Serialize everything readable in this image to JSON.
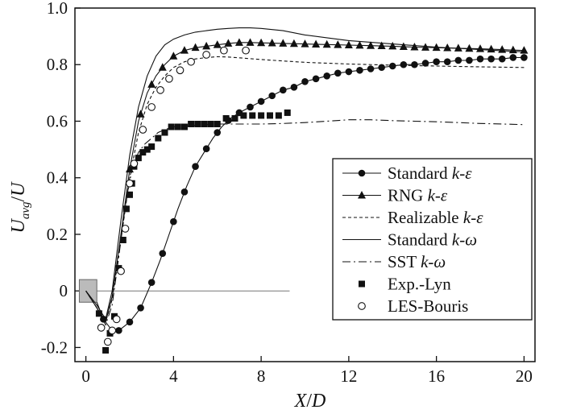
{
  "chart_data": {
    "type": "line",
    "xlabel": "X/D",
    "ylabel": "U_avg/U",
    "xlim": [
      -0.5,
      20.5
    ],
    "ylim": [
      -0.25,
      1.0
    ],
    "xticks": [
      0,
      4,
      8,
      12,
      16,
      20
    ],
    "yticks": [
      -0.2,
      0,
      0.2,
      0.4,
      0.6,
      0.8,
      1.0
    ],
    "ytick_labels": [
      "-0.2",
      "0",
      "0.2",
      "0.4",
      "0.6",
      "0.8",
      "1.0"
    ],
    "grid": false,
    "legend_position": "right",
    "series": [
      {
        "name": "Standard k-ε",
        "line": "solid",
        "marker": "filled-circle",
        "x": [
          0.5,
          0.8,
          1.1,
          1.5,
          2.0,
          2.5,
          3.0,
          3.4,
          3.8,
          4.2,
          4.6,
          5.0,
          5.4,
          5.8,
          6.2,
          6.6,
          7.0,
          7.5,
          8.0,
          8.5,
          9.0,
          9.5,
          10.0,
          10.5,
          11.0,
          11.5,
          12.0,
          12.5,
          13.0,
          13.5,
          14.0,
          14.5,
          15.0,
          15.5,
          16.0,
          16.5,
          17.0,
          17.5,
          18.0,
          18.5,
          19.0,
          19.5,
          20.0
        ],
        "y": [
          -0.04,
          -0.1,
          -0.13,
          -0.14,
          -0.11,
          -0.06,
          0.03,
          0.11,
          0.2,
          0.29,
          0.37,
          0.44,
          0.49,
          0.54,
          0.58,
          0.61,
          0.63,
          0.65,
          0.67,
          0.69,
          0.71,
          0.72,
          0.74,
          0.75,
          0.76,
          0.77,
          0.775,
          0.78,
          0.785,
          0.79,
          0.795,
          0.8,
          0.8,
          0.805,
          0.81,
          0.81,
          0.815,
          0.815,
          0.82,
          0.82,
          0.82,
          0.825,
          0.825
        ],
        "marker_x": [
          0.8,
          1.5,
          2.0,
          2.5,
          3.0,
          3.5,
          4.0,
          4.5,
          5.0,
          5.5,
          6.0,
          6.5,
          7.0,
          7.5,
          8.0,
          8.5,
          9.0,
          9.5,
          10.0,
          10.5,
          11.0,
          11.5,
          12.0,
          12.5,
          13.0,
          13.5,
          14.0,
          14.5,
          15.0,
          15.5,
          16.0,
          16.5,
          17.0,
          17.5,
          18.0,
          18.5,
          19.0,
          19.5,
          20.0
        ]
      },
      {
        "name": "RNG k-ε",
        "line": "solid",
        "marker": "filled-triangle",
        "x": [
          0.0,
          0.5,
          0.9,
          1.2,
          1.6,
          2.0,
          2.4,
          2.8,
          3.2,
          3.6,
          4.0,
          4.5,
          5.0,
          5.5,
          6.0,
          6.5,
          7.0,
          7.5,
          8.0,
          9.0,
          10.0,
          11.0,
          12.0,
          13.0,
          14.0,
          15.0,
          16.0,
          17.0,
          18.0,
          19.0,
          20.0
        ],
        "y": [
          0.0,
          -0.06,
          -0.11,
          -0.02,
          0.2,
          0.43,
          0.6,
          0.7,
          0.76,
          0.8,
          0.83,
          0.85,
          0.86,
          0.865,
          0.87,
          0.875,
          0.878,
          0.878,
          0.877,
          0.875,
          0.873,
          0.871,
          0.869,
          0.867,
          0.865,
          0.862,
          0.86,
          0.858,
          0.856,
          0.853,
          0.85
        ],
        "marker_x": [
          2.0,
          2.5,
          3.0,
          3.5,
          4.0,
          4.5,
          5.0,
          5.5,
          6.0,
          6.5,
          7.0,
          7.5,
          8.0,
          8.5,
          9.0,
          9.5,
          10.0,
          10.5,
          11.0,
          11.5,
          12.0,
          12.5,
          13.0,
          13.5,
          14.0,
          14.5,
          15.0,
          15.5,
          16.0,
          16.5,
          17.0,
          17.5,
          18.0,
          18.5,
          19.0,
          19.5,
          20.0
        ]
      },
      {
        "name": "Realizable k-ε",
        "line": "dashed",
        "x": [
          0.0,
          0.5,
          0.9,
          1.2,
          1.6,
          2.0,
          2.4,
          2.8,
          3.2,
          3.6,
          4.0,
          4.5,
          5.0,
          5.5,
          6.0,
          6.5,
          7.0,
          8.0,
          9.0,
          10.0,
          12.0,
          14.0,
          16.0,
          18.0,
          20.0
        ],
        "y": [
          0.0,
          -0.06,
          -0.11,
          -0.03,
          0.18,
          0.4,
          0.56,
          0.66,
          0.72,
          0.76,
          0.79,
          0.81,
          0.82,
          0.825,
          0.828,
          0.827,
          0.824,
          0.818,
          0.813,
          0.808,
          0.802,
          0.798,
          0.795,
          0.792,
          0.79
        ]
      },
      {
        "name": "Standard k-ω",
        "line": "solid",
        "x": [
          0.0,
          0.5,
          0.9,
          1.2,
          1.6,
          2.0,
          2.4,
          2.8,
          3.2,
          3.6,
          4.0,
          4.5,
          5.0,
          5.5,
          6.0,
          6.5,
          7.0,
          7.5,
          8.0,
          9.0,
          10.0,
          11.0,
          12.0,
          14.0,
          16.0,
          18.0,
          20.0
        ],
        "y": [
          0.0,
          -0.05,
          -0.1,
          0.0,
          0.25,
          0.48,
          0.65,
          0.76,
          0.83,
          0.87,
          0.89,
          0.905,
          0.915,
          0.92,
          0.925,
          0.928,
          0.93,
          0.93,
          0.928,
          0.92,
          0.905,
          0.895,
          0.885,
          0.873,
          0.862,
          0.853,
          0.845
        ]
      },
      {
        "name": "SST k-ω",
        "line": "dashdot",
        "x": [
          0.0,
          0.5,
          0.9,
          1.2,
          1.5,
          1.8,
          2.1,
          2.4,
          2.7,
          3.0,
          3.3,
          3.6,
          4.0,
          5.0,
          6.0,
          7.0,
          8.0,
          9.0,
          10.0,
          11.0,
          12.0,
          13.0,
          14.0,
          15.0,
          16.0,
          17.0,
          18.0,
          19.0,
          20.0
        ],
        "y": [
          0.0,
          -0.06,
          -0.12,
          -0.05,
          0.12,
          0.3,
          0.43,
          0.49,
          0.52,
          0.54,
          0.56,
          0.57,
          0.58,
          0.585,
          0.59,
          0.59,
          0.59,
          0.592,
          0.595,
          0.6,
          0.605,
          0.605,
          0.602,
          0.6,
          0.598,
          0.595,
          0.592,
          0.59,
          0.588
        ]
      },
      {
        "name": "Exp.-Lyn",
        "line": "none",
        "marker": "filled-square",
        "x": [
          0.6,
          0.9,
          1.1,
          1.3,
          1.5,
          1.7,
          1.85,
          2.0,
          2.1,
          2.2,
          2.4,
          2.6,
          2.8,
          3.0,
          3.3,
          3.6,
          3.9,
          4.2,
          4.5,
          4.8,
          5.1,
          5.4,
          5.7,
          6.0,
          6.4,
          6.8,
          7.2,
          7.6,
          8.0,
          8.4,
          8.8,
          9.2
        ],
        "y": [
          -0.08,
          -0.21,
          -0.15,
          -0.09,
          0.08,
          0.18,
          0.29,
          0.34,
          0.38,
          0.44,
          0.47,
          0.49,
          0.5,
          0.51,
          0.54,
          0.56,
          0.58,
          0.58,
          0.58,
          0.59,
          0.59,
          0.59,
          0.59,
          0.59,
          0.61,
          0.61,
          0.62,
          0.62,
          0.62,
          0.62,
          0.62,
          0.63
        ]
      },
      {
        "name": "LES-Bouris",
        "line": "none",
        "marker": "open-circle",
        "x": [
          0.7,
          1.0,
          1.2,
          1.4,
          1.6,
          1.8,
          2.0,
          2.2,
          2.6,
          3.0,
          3.4,
          3.8,
          4.3,
          4.8,
          5.5,
          6.3,
          7.3
        ],
        "y": [
          -0.13,
          -0.18,
          -0.14,
          -0.1,
          0.07,
          0.22,
          0.38,
          0.45,
          0.57,
          0.65,
          0.71,
          0.75,
          0.78,
          0.81,
          0.835,
          0.85,
          0.85
        ]
      }
    ]
  },
  "axes": {
    "x_label_main": "X",
    "x_label_sep": "/",
    "x_label_den": "D",
    "y_label_main": "U",
    "y_label_sub": "avg",
    "y_label_sep": "/",
    "y_label_den": "U"
  },
  "reference": {
    "zero_line_x": [
      -0.2,
      9.3
    ],
    "body_x": [
      -0.3,
      0.5
    ],
    "body_y": [
      -0.04,
      0.04
    ],
    "body_color": "#bbbbbb"
  },
  "legend": [
    {
      "prefix": "Standard ",
      "italic": "k-ε"
    },
    {
      "prefix": "RNG ",
      "italic": "k-ε"
    },
    {
      "prefix": "Realizable ",
      "italic": "k-ε"
    },
    {
      "prefix": "Standard ",
      "italic": "k-ω"
    },
    {
      "prefix": "SST ",
      "italic": "k-ω"
    },
    {
      "prefix": "Exp.-Lyn",
      "italic": ""
    },
    {
      "prefix": "LES-Bouris",
      "italic": ""
    }
  ]
}
